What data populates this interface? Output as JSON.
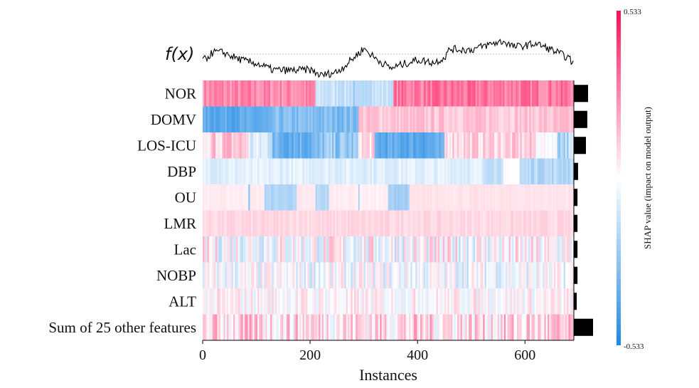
{
  "chart_data": {
    "type": "heatmap",
    "xlabel": "Instances",
    "x_ticks": [
      0,
      200,
      400,
      600
    ],
    "xlim": [
      0,
      691
    ],
    "fx_label": "f(x)",
    "features": [
      "NOR",
      "DOMV",
      "LOS-ICU",
      "DBP",
      "OU",
      "LMR",
      "Lac",
      "NOBP",
      "ALT",
      "Sum of 25 other features"
    ],
    "mean_abs_shap_relative": [
      0.74,
      0.7,
      0.63,
      0.22,
      0.19,
      0.19,
      0.19,
      0.19,
      0.15,
      1.0
    ],
    "colorbar": {
      "label": "SHAP value (impact on model output)",
      "max_label": "0.533",
      "min_label": "-0.533",
      "range": [
        -0.533,
        0.533
      ],
      "high_color": "#ff0d57",
      "low_color": "#1e88e5"
    },
    "fx_curve_relative": [
      [
        0,
        -1.0
      ],
      [
        20,
        0.3
      ],
      [
        40,
        0.2
      ],
      [
        60,
        -0.5
      ],
      [
        80,
        -1.0
      ],
      [
        100,
        -1.3
      ],
      [
        130,
        -2.2
      ],
      [
        160,
        -2.3
      ],
      [
        200,
        -2.2
      ],
      [
        220,
        -3.0
      ],
      [
        250,
        -2.5
      ],
      [
        270,
        -1.3
      ],
      [
        300,
        0.8
      ],
      [
        320,
        -0.5
      ],
      [
        350,
        -2.0
      ],
      [
        370,
        -1.5
      ],
      [
        400,
        -0.8
      ],
      [
        430,
        -1.2
      ],
      [
        450,
        -0.5
      ],
      [
        460,
        0.7
      ],
      [
        500,
        0.6
      ],
      [
        540,
        1.5
      ],
      [
        560,
        1.8
      ],
      [
        580,
        1.0
      ],
      [
        600,
        1.2
      ],
      [
        620,
        1.5
      ],
      [
        650,
        0.6
      ],
      [
        680,
        -0.5
      ],
      [
        690,
        -1.3
      ]
    ],
    "segments": [
      [
        [
          0,
          210,
          0.3,
          0.06
        ],
        [
          210,
          280,
          -0.15,
          0.04
        ],
        [
          280,
          300,
          -0.25,
          0.04
        ],
        [
          300,
          355,
          -0.15,
          0.04
        ],
        [
          355,
          691,
          0.35,
          0.06
        ]
      ],
      [
        [
          0,
          130,
          -0.45,
          0.04
        ],
        [
          130,
          290,
          -0.35,
          0.05
        ],
        [
          290,
          691,
          0.15,
          0.04
        ]
      ],
      [
        [
          0,
          15,
          0.0,
          0.05
        ],
        [
          15,
          85,
          0.15,
          0.08
        ],
        [
          85,
          130,
          -0.1,
          0.08
        ],
        [
          130,
          220,
          -0.4,
          0.07
        ],
        [
          220,
          290,
          -0.3,
          0.08
        ],
        [
          290,
          320,
          0.1,
          0.06
        ],
        [
          320,
          450,
          -0.45,
          0.05
        ],
        [
          450,
          620,
          0.12,
          0.06
        ],
        [
          620,
          660,
          0.0,
          0.03
        ],
        [
          660,
          691,
          -0.2,
          0.08
        ]
      ],
      [
        [
          0,
          520,
          -0.08,
          0.03
        ],
        [
          520,
          560,
          -0.15,
          0.03
        ],
        [
          560,
          590,
          0.0,
          0.01
        ],
        [
          590,
          691,
          -0.2,
          0.04
        ]
      ],
      [
        [
          0,
          85,
          0.05,
          0.01
        ],
        [
          85,
          88,
          -0.3,
          0.01
        ],
        [
          88,
          115,
          0.05,
          0.01
        ],
        [
          115,
          175,
          -0.22,
          0.02
        ],
        [
          175,
          210,
          0.05,
          0.01
        ],
        [
          210,
          235,
          -0.2,
          0.02
        ],
        [
          235,
          290,
          0.05,
          0.01
        ],
        [
          290,
          292,
          -0.3,
          0.01
        ],
        [
          292,
          345,
          0.04,
          0.01
        ],
        [
          345,
          385,
          -0.25,
          0.02
        ],
        [
          385,
          691,
          0.07,
          0.01
        ]
      ],
      [
        [
          0,
          691,
          0.1,
          0.02
        ]
      ],
      [
        [
          0,
          691,
          0.0,
          0.12
        ]
      ],
      [
        [
          0,
          691,
          -0.03,
          0.09
        ]
      ],
      [
        [
          0,
          691,
          0.02,
          0.07
        ]
      ],
      [
        [
          0,
          691,
          0.1,
          0.12
        ]
      ]
    ]
  }
}
